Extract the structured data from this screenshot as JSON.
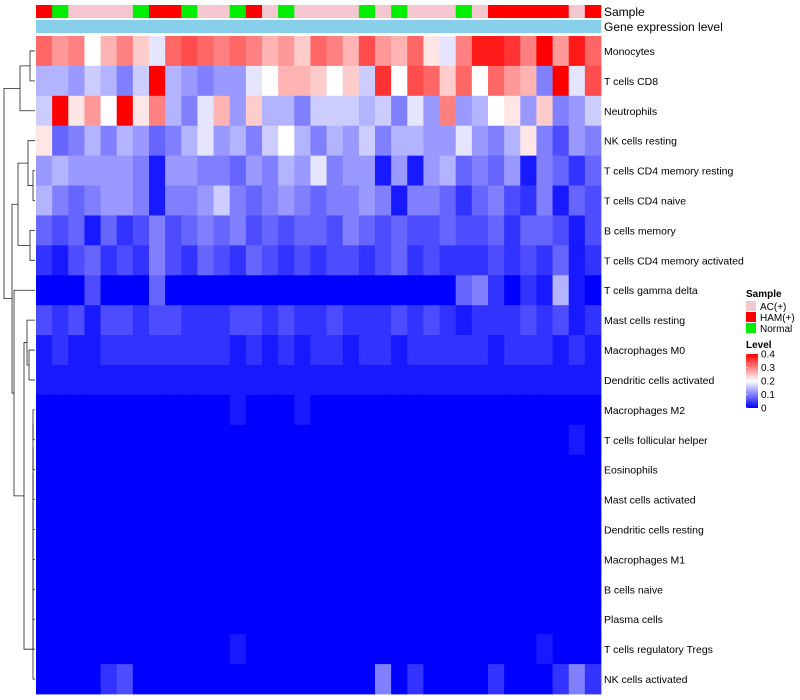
{
  "chart_data": {
    "type": "heatmap",
    "title": "",
    "rows": [
      "Monocytes",
      "T cells CD8",
      "Neutrophils",
      "NK cells resting",
      "T cells CD4 memory resting",
      "T cells CD4 naive",
      "B cells memory",
      "T cells CD4 memory activated",
      "T cells gamma delta",
      "Mast cells resting",
      "Macrophages M0",
      "Dendritic cells activated",
      "Macrophages M2",
      "T cells follicular helper",
      "Eosinophils",
      "Mast cells activated",
      "Dendritic cells resting",
      "Macrophages M1",
      "B cells naive",
      "Plasma cells",
      "T cells regulatory  Tregs",
      "NK cells activated"
    ],
    "samples": [
      "HAM(+)",
      "Normal",
      "AC(+)",
      "AC(+)",
      "AC(+)",
      "AC(+)",
      "Normal",
      "HAM(+)",
      "HAM(+)",
      "Normal",
      "AC(+)",
      "AC(+)",
      "Normal",
      "HAM(+)",
      "AC(+)",
      "Normal",
      "AC(+)",
      "AC(+)",
      "AC(+)",
      "AC(+)",
      "Normal",
      "AC(+)",
      "Normal",
      "AC(+)",
      "AC(+)",
      "AC(+)",
      "Normal",
      "AC(+)",
      "HAM(+)",
      "HAM(+)",
      "HAM(+)",
      "HAM(+)",
      "HAM(+)",
      "AC(+)",
      "HAM(+)"
    ],
    "values": [
      [
        0.32,
        0.28,
        0.3,
        0.2,
        0.26,
        0.3,
        0.24,
        0.18,
        0.32,
        0.34,
        0.32,
        0.3,
        0.32,
        0.3,
        0.26,
        0.28,
        0.24,
        0.32,
        0.3,
        0.26,
        0.34,
        0.28,
        0.26,
        0.32,
        0.22,
        0.18,
        0.3,
        0.38,
        0.38,
        0.36,
        0.3,
        0.4,
        0.28,
        0.38,
        0.32
      ],
      [
        0.14,
        0.14,
        0.12,
        0.16,
        0.14,
        0.1,
        0.16,
        0.4,
        0.14,
        0.12,
        0.1,
        0.12,
        0.12,
        0.18,
        0.2,
        0.26,
        0.26,
        0.24,
        0.2,
        0.24,
        0.16,
        0.36,
        0.2,
        0.34,
        0.32,
        0.24,
        0.32,
        0.2,
        0.32,
        0.28,
        0.26,
        0.1,
        0.4,
        0.18,
        0.34
      ],
      [
        0.16,
        0.4,
        0.22,
        0.28,
        0.2,
        0.4,
        0.22,
        0.3,
        0.14,
        0.1,
        0.18,
        0.26,
        0.12,
        0.24,
        0.14,
        0.14,
        0.1,
        0.16,
        0.16,
        0.16,
        0.14,
        0.16,
        0.1,
        0.18,
        0.12,
        0.3,
        0.12,
        0.14,
        0.2,
        0.22,
        0.12,
        0.24,
        0.1,
        0.12,
        0.16
      ],
      [
        0.22,
        0.08,
        0.1,
        0.14,
        0.1,
        0.14,
        0.12,
        0.08,
        0.1,
        0.14,
        0.18,
        0.12,
        0.14,
        0.1,
        0.16,
        0.2,
        0.14,
        0.1,
        0.14,
        0.12,
        0.16,
        0.1,
        0.14,
        0.14,
        0.12,
        0.12,
        0.18,
        0.12,
        0.1,
        0.14,
        0.22,
        0.1,
        0.06,
        0.12,
        0.1
      ],
      [
        0.12,
        0.14,
        0.12,
        0.12,
        0.12,
        0.12,
        0.1,
        0.02,
        0.12,
        0.12,
        0.1,
        0.1,
        0.08,
        0.12,
        0.1,
        0.14,
        0.12,
        0.18,
        0.1,
        0.12,
        0.12,
        0.02,
        0.12,
        0.02,
        0.12,
        0.14,
        0.08,
        0.1,
        0.08,
        0.12,
        0.02,
        0.1,
        0.08,
        0.04,
        0.08
      ],
      [
        0.14,
        0.1,
        0.08,
        0.1,
        0.12,
        0.12,
        0.1,
        0.02,
        0.1,
        0.1,
        0.12,
        0.16,
        0.1,
        0.08,
        0.1,
        0.12,
        0.1,
        0.08,
        0.1,
        0.1,
        0.12,
        0.1,
        0.02,
        0.1,
        0.1,
        0.08,
        0.04,
        0.08,
        0.1,
        0.06,
        0.04,
        0.1,
        0.02,
        0.08,
        0.06
      ],
      [
        0.08,
        0.06,
        0.08,
        0.02,
        0.08,
        0.04,
        0.06,
        0.1,
        0.06,
        0.08,
        0.1,
        0.08,
        0.1,
        0.06,
        0.08,
        0.06,
        0.08,
        0.08,
        0.06,
        0.1,
        0.08,
        0.06,
        0.08,
        0.06,
        0.06,
        0.08,
        0.06,
        0.06,
        0.08,
        0.04,
        0.08,
        0.08,
        0.06,
        0.02,
        0.06
      ],
      [
        0.04,
        0.02,
        0.06,
        0.08,
        0.04,
        0.06,
        0.04,
        0.1,
        0.06,
        0.04,
        0.08,
        0.06,
        0.04,
        0.08,
        0.06,
        0.04,
        0.06,
        0.04,
        0.06,
        0.06,
        0.04,
        0.06,
        0.08,
        0.04,
        0.06,
        0.04,
        0.04,
        0.04,
        0.06,
        0.04,
        0.06,
        0.04,
        0.08,
        0.02,
        0.04
      ],
      [
        0.0,
        0.0,
        0.0,
        0.06,
        0.0,
        0.0,
        0.0,
        0.08,
        0.0,
        0.0,
        0.0,
        0.0,
        0.0,
        0.0,
        0.0,
        0.0,
        0.0,
        0.0,
        0.0,
        0.0,
        0.0,
        0.0,
        0.0,
        0.0,
        0.0,
        0.0,
        0.08,
        0.1,
        0.04,
        0.0,
        0.04,
        0.02,
        0.14,
        0.02,
        0.0
      ],
      [
        0.06,
        0.04,
        0.06,
        0.02,
        0.06,
        0.06,
        0.04,
        0.06,
        0.06,
        0.04,
        0.04,
        0.04,
        0.06,
        0.06,
        0.04,
        0.06,
        0.04,
        0.04,
        0.06,
        0.04,
        0.04,
        0.04,
        0.06,
        0.04,
        0.06,
        0.04,
        0.02,
        0.04,
        0.04,
        0.04,
        0.06,
        0.04,
        0.06,
        0.02,
        0.04
      ],
      [
        0.02,
        0.04,
        0.02,
        0.02,
        0.04,
        0.04,
        0.04,
        0.04,
        0.04,
        0.04,
        0.04,
        0.04,
        0.02,
        0.04,
        0.02,
        0.04,
        0.02,
        0.04,
        0.04,
        0.02,
        0.04,
        0.04,
        0.02,
        0.04,
        0.04,
        0.04,
        0.04,
        0.04,
        0.02,
        0.04,
        0.04,
        0.04,
        0.02,
        0.04,
        0.02
      ],
      [
        0.02,
        0.02,
        0.02,
        0.02,
        0.02,
        0.02,
        0.02,
        0.02,
        0.02,
        0.02,
        0.02,
        0.02,
        0.02,
        0.02,
        0.02,
        0.02,
        0.02,
        0.02,
        0.02,
        0.02,
        0.02,
        0.02,
        0.02,
        0.02,
        0.02,
        0.02,
        0.02,
        0.02,
        0.02,
        0.02,
        0.02,
        0.02,
        0.02,
        0.02,
        0.02
      ],
      [
        0.0,
        0.0,
        0.0,
        0.0,
        0.0,
        0.0,
        0.0,
        0.0,
        0.0,
        0.0,
        0.0,
        0.0,
        0.02,
        0.0,
        0.0,
        0.0,
        0.02,
        0.0,
        0.0,
        0.0,
        0.0,
        0.0,
        0.0,
        0.0,
        0.0,
        0.0,
        0.0,
        0.0,
        0.0,
        0.0,
        0.0,
        0.0,
        0.0,
        0.0,
        0.0
      ],
      [
        0.0,
        0.0,
        0.0,
        0.0,
        0.0,
        0.0,
        0.0,
        0.0,
        0.0,
        0.0,
        0.0,
        0.0,
        0.0,
        0.0,
        0.0,
        0.0,
        0.0,
        0.0,
        0.0,
        0.0,
        0.0,
        0.0,
        0.0,
        0.0,
        0.0,
        0.0,
        0.0,
        0.0,
        0.0,
        0.0,
        0.0,
        0.0,
        0.0,
        0.02,
        0.0
      ],
      [
        0.0,
        0.0,
        0.0,
        0.0,
        0.0,
        0.0,
        0.0,
        0.0,
        0.0,
        0.0,
        0.0,
        0.0,
        0.0,
        0.0,
        0.0,
        0.0,
        0.0,
        0.0,
        0.0,
        0.0,
        0.0,
        0.0,
        0.0,
        0.0,
        0.0,
        0.0,
        0.0,
        0.0,
        0.0,
        0.0,
        0.0,
        0.0,
        0.0,
        0.0,
        0.0
      ],
      [
        0.0,
        0.0,
        0.0,
        0.0,
        0.0,
        0.0,
        0.0,
        0.0,
        0.0,
        0.0,
        0.0,
        0.0,
        0.0,
        0.0,
        0.0,
        0.0,
        0.0,
        0.0,
        0.0,
        0.0,
        0.0,
        0.0,
        0.0,
        0.0,
        0.0,
        0.0,
        0.0,
        0.0,
        0.0,
        0.0,
        0.0,
        0.0,
        0.0,
        0.0,
        0.0
      ],
      [
        0.0,
        0.0,
        0.0,
        0.0,
        0.0,
        0.0,
        0.0,
        0.0,
        0.0,
        0.0,
        0.0,
        0.0,
        0.0,
        0.0,
        0.0,
        0.0,
        0.0,
        0.0,
        0.0,
        0.0,
        0.0,
        0.0,
        0.0,
        0.0,
        0.0,
        0.0,
        0.0,
        0.0,
        0.0,
        0.0,
        0.0,
        0.0,
        0.0,
        0.0,
        0.0
      ],
      [
        0.0,
        0.0,
        0.0,
        0.0,
        0.0,
        0.0,
        0.0,
        0.0,
        0.0,
        0.0,
        0.0,
        0.0,
        0.0,
        0.0,
        0.0,
        0.0,
        0.0,
        0.0,
        0.0,
        0.0,
        0.0,
        0.0,
        0.0,
        0.0,
        0.0,
        0.0,
        0.0,
        0.0,
        0.0,
        0.0,
        0.0,
        0.0,
        0.0,
        0.0,
        0.0
      ],
      [
        0.0,
        0.0,
        0.0,
        0.0,
        0.0,
        0.0,
        0.0,
        0.0,
        0.0,
        0.0,
        0.0,
        0.0,
        0.0,
        0.0,
        0.0,
        0.0,
        0.0,
        0.0,
        0.0,
        0.0,
        0.0,
        0.0,
        0.0,
        0.0,
        0.0,
        0.0,
        0.0,
        0.0,
        0.0,
        0.0,
        0.0,
        0.0,
        0.0,
        0.0,
        0.0
      ],
      [
        0.0,
        0.0,
        0.0,
        0.0,
        0.0,
        0.0,
        0.0,
        0.0,
        0.0,
        0.0,
        0.0,
        0.0,
        0.0,
        0.0,
        0.0,
        0.0,
        0.0,
        0.0,
        0.0,
        0.0,
        0.0,
        0.0,
        0.0,
        0.0,
        0.0,
        0.0,
        0.0,
        0.0,
        0.0,
        0.0,
        0.0,
        0.0,
        0.0,
        0.0,
        0.0
      ],
      [
        0.0,
        0.0,
        0.0,
        0.0,
        0.0,
        0.0,
        0.0,
        0.0,
        0.0,
        0.0,
        0.0,
        0.0,
        0.02,
        0.0,
        0.0,
        0.0,
        0.0,
        0.0,
        0.0,
        0.0,
        0.0,
        0.0,
        0.0,
        0.0,
        0.0,
        0.0,
        0.0,
        0.0,
        0.0,
        0.0,
        0.0,
        0.02,
        0.0,
        0.0,
        0.0
      ],
      [
        0.0,
        0.0,
        0.0,
        0.0,
        0.04,
        0.06,
        0.0,
        0.0,
        0.0,
        0.0,
        0.0,
        0.0,
        0.0,
        0.0,
        0.0,
        0.0,
        0.0,
        0.0,
        0.0,
        0.0,
        0.0,
        0.1,
        0.0,
        0.04,
        0.0,
        0.0,
        0.0,
        0.0,
        0.04,
        0.0,
        0.0,
        0.0,
        0.04,
        0.1,
        0.04
      ]
    ],
    "annotations": {
      "sample_label": "Sample",
      "expression_label": "Gene expression level"
    },
    "legend": {
      "sample_title": "Sample",
      "sample_entries": [
        {
          "label": "AC(+)",
          "color": "#f4c6d0"
        },
        {
          "label": "HAM(+)",
          "color": "#ff0000"
        },
        {
          "label": "Normal",
          "color": "#00ee00"
        }
      ],
      "level_title": "Level",
      "level_ticks": [
        0.4,
        0.3,
        0.2,
        0.1,
        0
      ],
      "level_range": [
        0,
        0.4
      ]
    },
    "colors": {
      "low": "#0000ff",
      "mid": "#ffffff",
      "high": "#ff0000",
      "expression_bar": "#87ceeb"
    }
  }
}
